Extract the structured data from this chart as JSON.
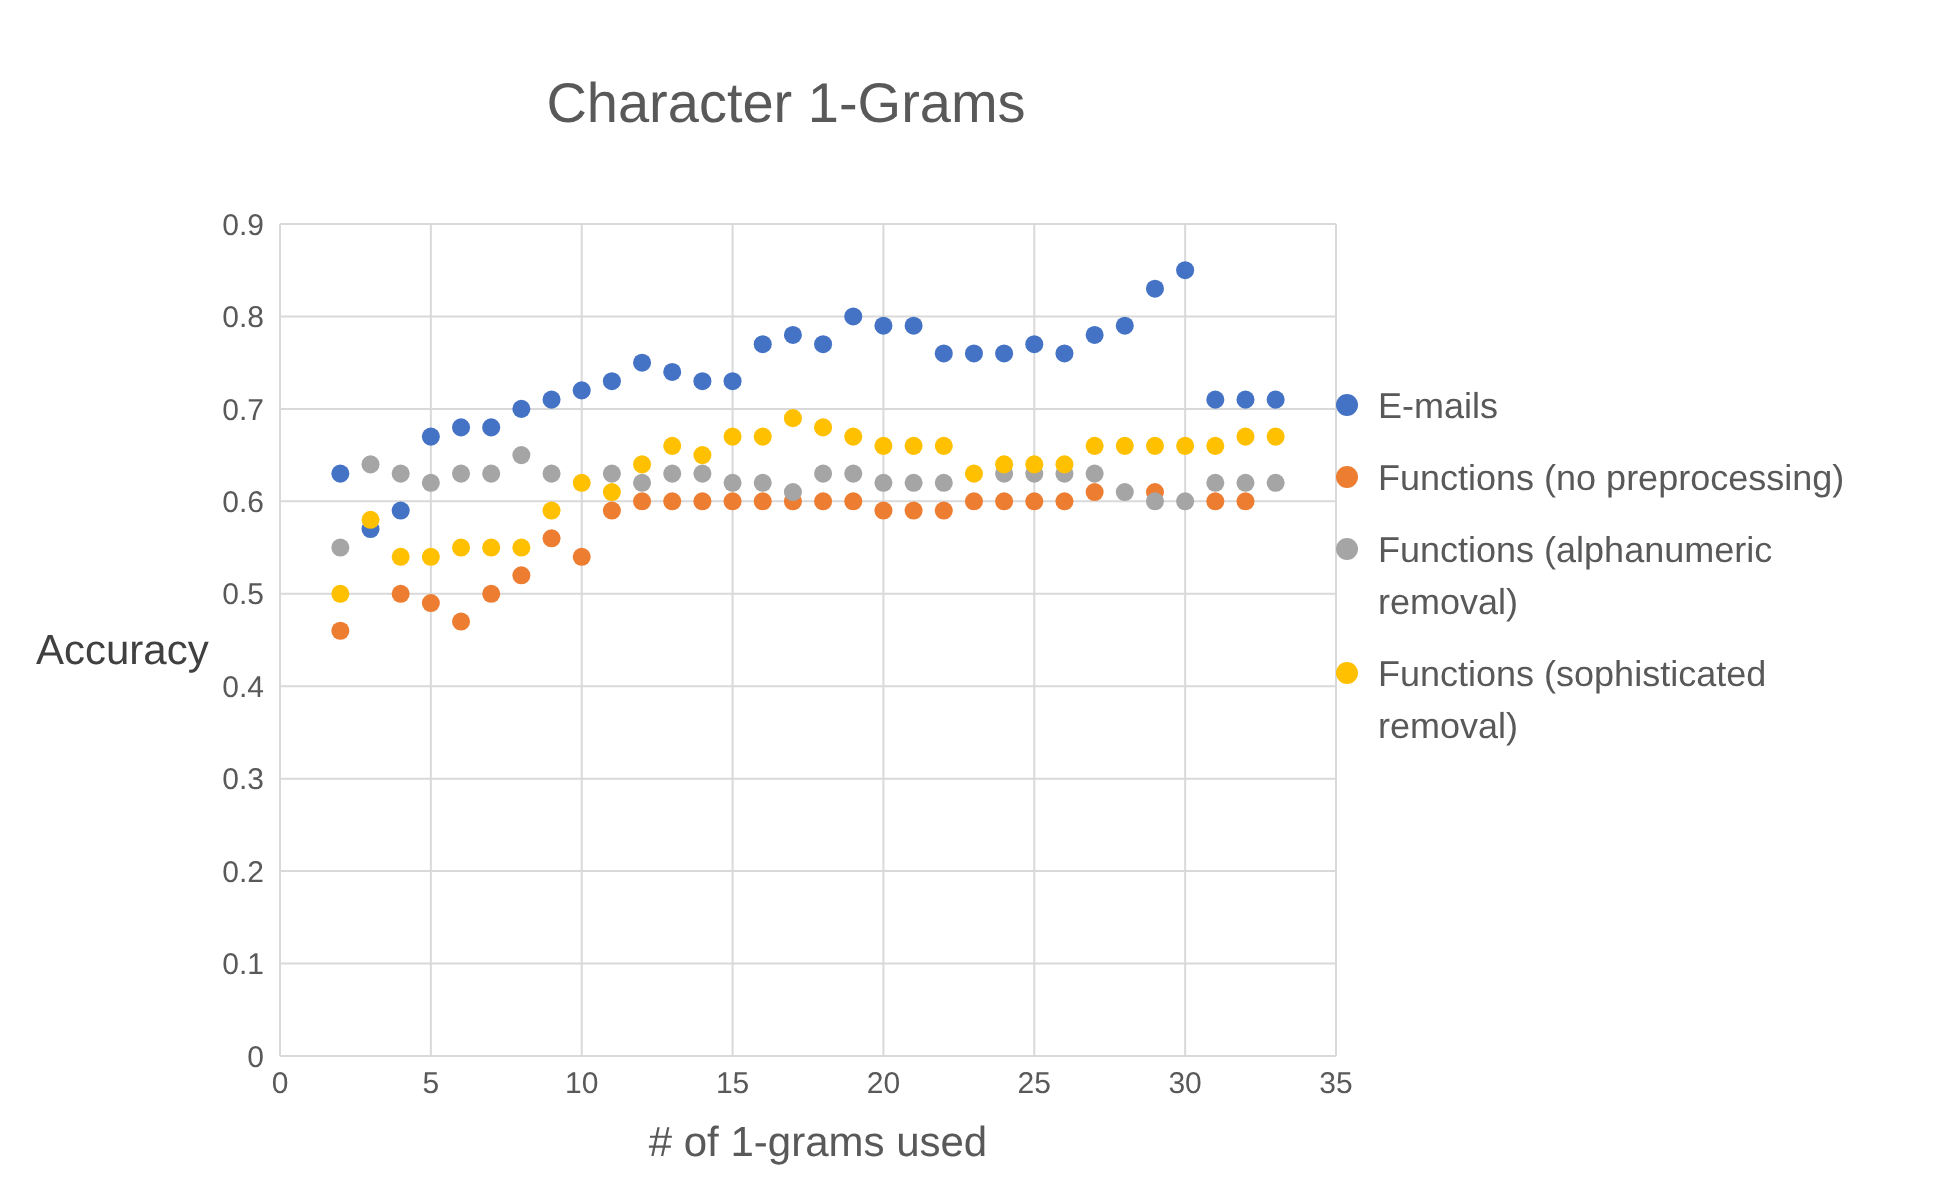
{
  "chart_data": {
    "type": "scatter",
    "title": "Character 1-Grams",
    "xlabel": "# of 1-grams used",
    "ylabel": "Accuracy",
    "x": [
      2,
      3,
      4,
      5,
      6,
      7,
      8,
      9,
      10,
      11,
      12,
      13,
      14,
      15,
      16,
      17,
      18,
      19,
      20,
      21,
      22,
      23,
      24,
      25,
      26,
      27,
      28,
      29,
      30,
      31,
      32,
      33
    ],
    "series": [
      {
        "name": "E-mails",
        "color": "#4472c4",
        "values": [
          0.63,
          0.57,
          0.59,
          0.67,
          0.68,
          0.68,
          0.7,
          0.71,
          0.72,
          0.73,
          0.75,
          0.74,
          0.73,
          0.73,
          0.77,
          0.78,
          0.77,
          0.8,
          0.79,
          0.79,
          0.76,
          0.76,
          0.76,
          0.77,
          0.76,
          0.78,
          0.79,
          0.83,
          0.85,
          0.71,
          0.71,
          0.71
        ]
      },
      {
        "name": "Functions (no preprocessing)",
        "color": "#ed7d31",
        "values": [
          0.46,
          null,
          0.5,
          0.49,
          0.47,
          0.5,
          0.52,
          0.56,
          0.54,
          0.59,
          0.6,
          0.6,
          0.6,
          0.6,
          0.6,
          0.6,
          0.6,
          0.6,
          0.59,
          0.59,
          0.59,
          0.6,
          0.6,
          0.6,
          0.6,
          0.61,
          null,
          0.61,
          null,
          0.6,
          0.6,
          null
        ]
      },
      {
        "name": "Functions (alphanumeric removal)",
        "color": "#a5a5a5",
        "values": [
          0.55,
          0.64,
          0.63,
          0.62,
          0.63,
          0.63,
          0.65,
          0.63,
          null,
          0.63,
          0.62,
          0.63,
          0.63,
          0.62,
          0.62,
          0.61,
          0.63,
          0.63,
          0.62,
          0.62,
          0.62,
          null,
          0.63,
          0.63,
          0.63,
          0.63,
          0.61,
          0.6,
          0.6,
          0.62,
          0.62,
          0.62
        ]
      },
      {
        "name": "Functions (sophisticated removal)",
        "color": "#ffc000",
        "values": [
          0.5,
          0.58,
          0.54,
          0.54,
          0.55,
          0.55,
          0.55,
          0.59,
          0.62,
          0.61,
          0.64,
          0.66,
          0.65,
          0.67,
          0.67,
          0.69,
          0.68,
          0.67,
          0.66,
          0.66,
          0.66,
          0.63,
          0.64,
          0.64,
          0.64,
          0.66,
          0.66,
          0.66,
          0.66,
          0.66,
          0.67,
          0.67
        ]
      }
    ],
    "xlim": [
      0,
      35
    ],
    "xticks": [
      0,
      5,
      10,
      15,
      20,
      25,
      30,
      35
    ],
    "ylim": [
      0,
      0.9
    ],
    "yticks": [
      0,
      0.1,
      0.2,
      0.3,
      0.4,
      0.5,
      0.6,
      0.7,
      0.8,
      0.9
    ],
    "grid": true,
    "legend": "right",
    "marker": "circle"
  }
}
